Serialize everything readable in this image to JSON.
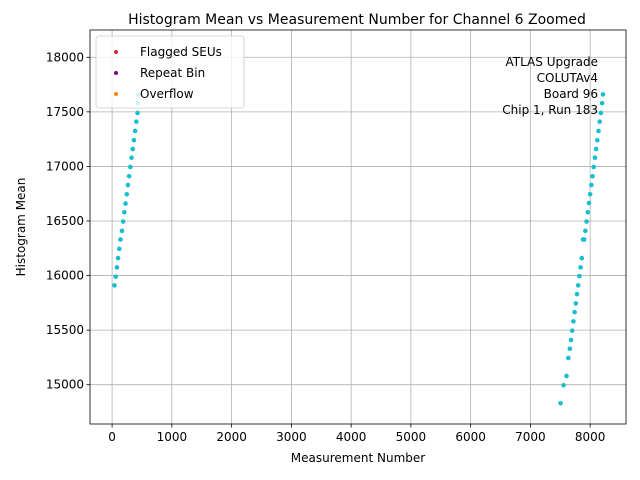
{
  "chart_data": {
    "type": "scatter",
    "title": "Histogram Mean vs Measurement Number for Channel 6 Zoomed",
    "xlabel": "Measurement Number",
    "ylabel": "Histogram Mean",
    "xlim": [
      -370,
      8600
    ],
    "ylim": [
      14640,
      18250
    ],
    "xticks": [
      0,
      1000,
      2000,
      3000,
      4000,
      5000,
      6000,
      7000,
      8000
    ],
    "yticks": [
      15000,
      15500,
      16000,
      16500,
      17000,
      17500,
      18000
    ],
    "grid": true,
    "legend_position": "top-left",
    "legend": [
      {
        "label": "Flagged SEUs",
        "color": "#d62728"
      },
      {
        "label": "Repeat Bin",
        "color": "#7f007f"
      },
      {
        "label": "Overflow",
        "color": "#ff7f0e"
      }
    ],
    "annotation": [
      "ATLAS Upgrade",
      "COLUTAv4",
      "Board 96",
      "Chip 1, Run 183"
    ],
    "series": [
      {
        "color": "#17becf",
        "x": [
          40,
          60,
          80,
          100,
          120,
          140,
          165,
          185,
          205,
          225,
          245,
          265,
          285,
          305,
          325,
          345,
          365,
          385,
          405,
          425
        ],
        "y": [
          15910,
          15990,
          16075,
          16160,
          16245,
          16330,
          16410,
          16495,
          16580,
          16660,
          16745,
          16830,
          16910,
          16995,
          17080,
          17160,
          17240,
          17325,
          17410,
          17490
        ]
      },
      {
        "color": "#17becf",
        "x": [
          430,
          440
        ],
        "y": [
          17580,
          17660
        ]
      },
      {
        "color": "#17becf",
        "x": [
          7505,
          7555,
          7605,
          7635,
          7660,
          7680,
          7700,
          7720,
          7740,
          7760,
          7780,
          7800,
          7820,
          7840,
          7860,
          7880,
          7900,
          7920,
          7940,
          7960,
          7980,
          8000,
          8020,
          8040,
          8060,
          8080,
          8100,
          8120,
          8140,
          8160,
          8180,
          8200,
          8215
        ],
        "y": [
          14830,
          14995,
          15080,
          15245,
          15330,
          15410,
          15495,
          15580,
          15665,
          15745,
          15830,
          15910,
          15995,
          16075,
          16160,
          16330,
          16330,
          16410,
          16495,
          16580,
          16665,
          16745,
          16830,
          16910,
          16995,
          17080,
          17160,
          17240,
          17325,
          17410,
          17490,
          17580,
          17660
        ]
      }
    ]
  }
}
